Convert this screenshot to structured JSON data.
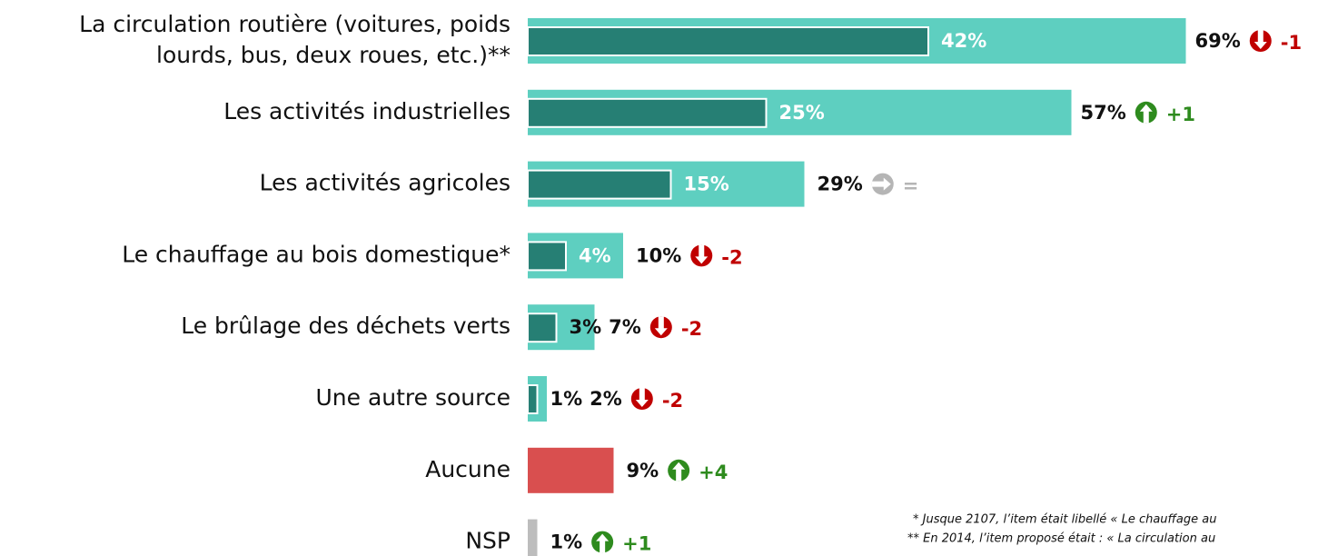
{
  "chart_data": {
    "type": "bar",
    "categories": [
      [
        "La circulation routière (voitures, poids",
        "lourds, bus, deux roues, etc.)**"
      ],
      [
        "Les activités industrielles"
      ],
      [
        "Les activités agricoles"
      ],
      [
        "Le chauffage au bois domestique*"
      ],
      [
        "Le brûlage des déchets verts"
      ],
      [
        "Une autre source"
      ],
      [
        "Aucune"
      ],
      [
        "NSP"
      ]
    ],
    "values": [
      69,
      57,
      29,
      10,
      7,
      2,
      9,
      1
    ],
    "value_labels": [
      "69%",
      "57%",
      "29%",
      "10%",
      "7%",
      "2%",
      "9%",
      "1%"
    ],
    "first_values": [
      42,
      25,
      15,
      4,
      3,
      1,
      null,
      null
    ],
    "first_value_labels": [
      "42%",
      "25%",
      "15%",
      "4%",
      "3%",
      "1%",
      null,
      null
    ],
    "colors": [
      "#5ecfc0",
      "#5ecfc0",
      "#5ecfc0",
      "#5ecfc0",
      "#5ecfc0",
      "#5ecfc0",
      "#d94f4f",
      "#bdbdbd"
    ],
    "first_color": "#267f74",
    "changes": [
      -1,
      1,
      0,
      -2,
      -2,
      -2,
      4,
      1
    ],
    "change_labels": [
      "-1",
      "+1",
      "=",
      "-2",
      "-2",
      "-2",
      "+4",
      "+1"
    ],
    "up_color": "#2e8b1e",
    "down_color": "#c00000",
    "same_color": "#b5b5b5",
    "xlim": [
      0,
      100
    ],
    "footnotes": [
      "* Jusque 2107, l’item était libellé « Le chauffage au",
      "** En 2014, l’item proposé était : « La circulation au"
    ]
  }
}
